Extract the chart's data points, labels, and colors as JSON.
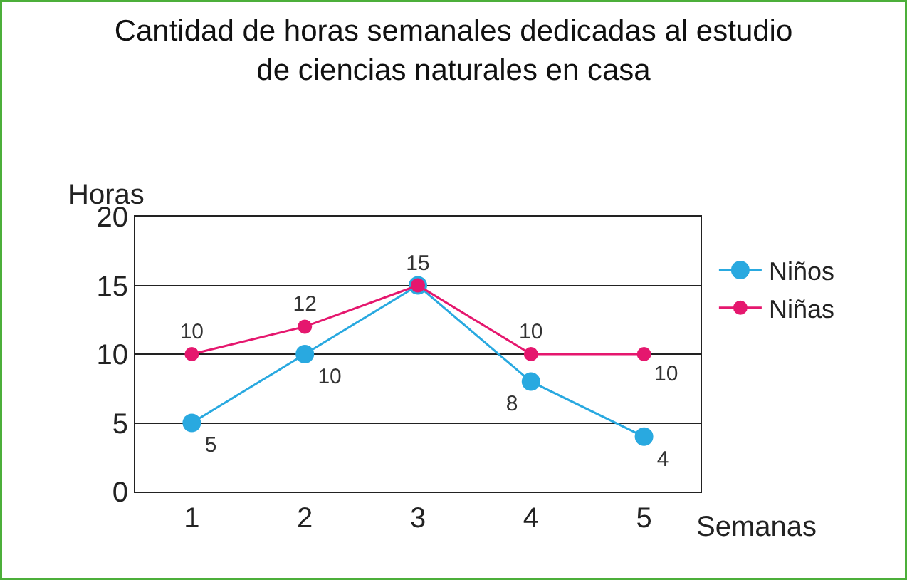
{
  "chart_data": {
    "type": "line",
    "title": "Cantidad de horas semanales dedicadas al estudio\nde ciencias naturales en casa",
    "xlabel": "Semanas",
    "ylabel": "Horas",
    "categories": [
      "1",
      "2",
      "3",
      "4",
      "5"
    ],
    "series": [
      {
        "name": "Niños",
        "color": "#29a9e0",
        "values": [
          5,
          10,
          15,
          8,
          4
        ],
        "value_labels": [
          "5",
          "10",
          null,
          "8",
          "4"
        ]
      },
      {
        "name": "Niñas",
        "color": "#e5176e",
        "values": [
          10,
          12,
          15,
          10,
          10
        ],
        "value_labels": [
          "10",
          "12",
          "15",
          "10",
          "10"
        ]
      }
    ],
    "ylim": [
      0,
      20
    ],
    "yticks": [
      0,
      5,
      10,
      15,
      20
    ],
    "grid": "y",
    "legend": "right",
    "marker": "circle",
    "line_style": "solid"
  }
}
